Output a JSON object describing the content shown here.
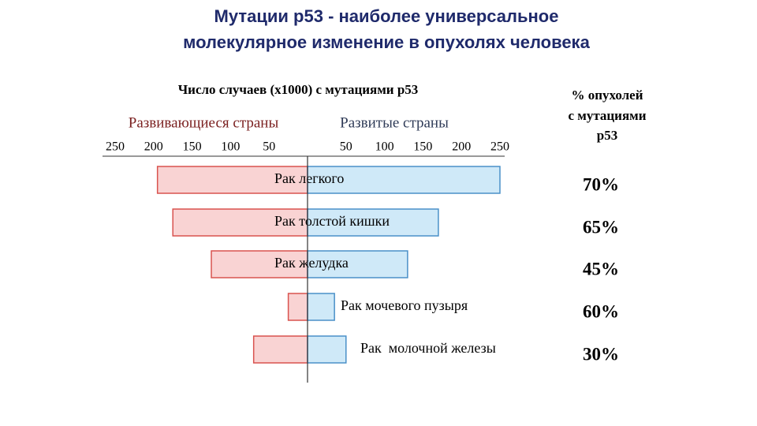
{
  "chart_data": {
    "type": "butterfly",
    "title": [
      "Мутации p53 - наиболее универсальное",
      "молекулярное изменение в опухолях человека"
    ],
    "x_label": "Число случаев (x1000) с мутациями p53",
    "categories": [
      "Рак легкого",
      "Рак толстой кишки",
      "Рак желудка",
      "Рак мочевого пузыря",
      "Рак  молочной железы"
    ],
    "series": [
      {
        "name": "Развивающиеся страны",
        "color": "#f9d3d3",
        "stroke": "#d9534f",
        "side": "left",
        "values": [
          195,
          175,
          125,
          25,
          70
        ]
      },
      {
        "name": "Развитые страны",
        "color": "#cfe9f8",
        "stroke": "#4a90c8",
        "side": "right",
        "values": [
          250,
          170,
          130,
          35,
          50
        ]
      }
    ],
    "xlim": [
      0,
      250
    ],
    "xticks": [
      50,
      100,
      150,
      200,
      250
    ],
    "percent": {
      "title": [
        "% опухолей",
        "с мутациями",
        "p53"
      ],
      "values": [
        70,
        65,
        45,
        60,
        30
      ],
      "value_labels": [
        "70%",
        "65%",
        "45%",
        "60%",
        "30%"
      ]
    }
  }
}
